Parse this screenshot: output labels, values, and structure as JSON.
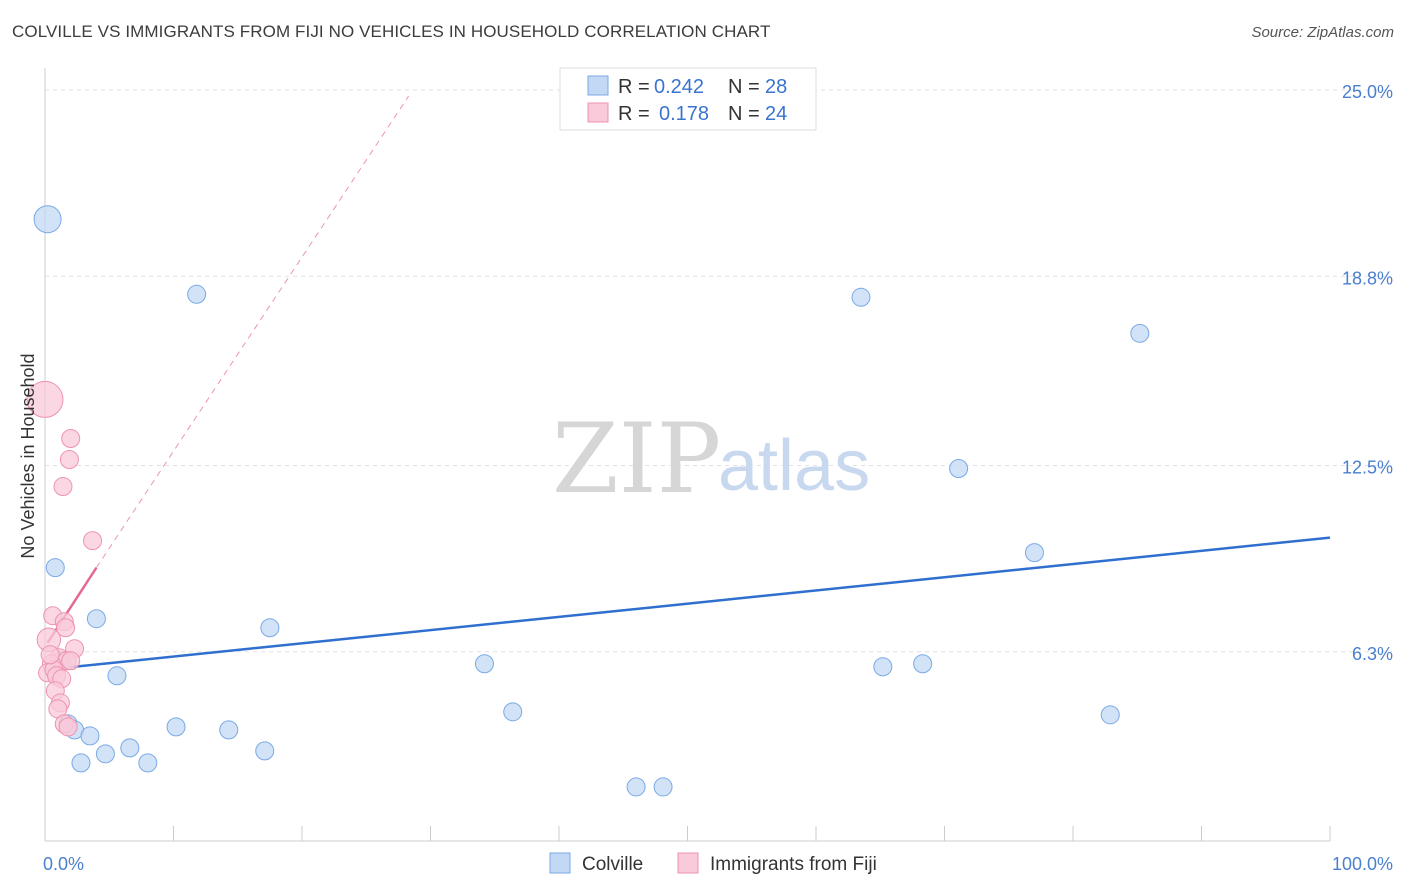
{
  "title": "COLVILLE VS IMMIGRANTS FROM FIJI NO VEHICLES IN HOUSEHOLD CORRELATION CHART",
  "source": "Source: ZipAtlas.com",
  "watermark": {
    "zip": "ZIP",
    "atlas": "atlas"
  },
  "chart_data": {
    "type": "scatter",
    "ylabel": "No Vehicles in Household",
    "xlim": [
      0,
      100
    ],
    "ylim": [
      0,
      25.6
    ],
    "x_tick_labels": {
      "min": "0.0%",
      "max": "100.0%"
    },
    "y_ticks": [
      {
        "value": 6.3,
        "label": "6.3%"
      },
      {
        "value": 12.5,
        "label": "12.5%"
      },
      {
        "value": 18.8,
        "label": "18.8%"
      },
      {
        "value": 25.0,
        "label": "25.0%"
      }
    ],
    "series": [
      {
        "name": "Colville",
        "color": "#7aaae6",
        "fill": "#c3d8f4",
        "R": "0.242",
        "N": "28",
        "trend": {
          "x0": 0,
          "y0": 5.7,
          "x1": 100,
          "y1": 10.1,
          "color": "#2f6fcf"
        },
        "points": [
          {
            "x": 0.2,
            "y": 20.7,
            "s": 1.5
          },
          {
            "x": 11.8,
            "y": 18.2,
            "s": 1
          },
          {
            "x": 63.5,
            "y": 18.1,
            "s": 1
          },
          {
            "x": 85.2,
            "y": 16.9,
            "s": 1
          },
          {
            "x": 71.1,
            "y": 12.4,
            "s": 1
          },
          {
            "x": 77.0,
            "y": 9.6,
            "s": 1
          },
          {
            "x": 0.8,
            "y": 9.1,
            "s": 1
          },
          {
            "x": 4.0,
            "y": 7.4,
            "s": 1
          },
          {
            "x": 17.5,
            "y": 7.1,
            "s": 1
          },
          {
            "x": 1.3,
            "y": 6.0,
            "s": 1
          },
          {
            "x": 34.2,
            "y": 5.9,
            "s": 1
          },
          {
            "x": 65.2,
            "y": 5.8,
            "s": 1
          },
          {
            "x": 68.3,
            "y": 5.9,
            "s": 1
          },
          {
            "x": 5.6,
            "y": 5.5,
            "s": 1
          },
          {
            "x": 36.4,
            "y": 4.3,
            "s": 1
          },
          {
            "x": 82.9,
            "y": 4.2,
            "s": 1
          },
          {
            "x": 1.8,
            "y": 3.9,
            "s": 1
          },
          {
            "x": 2.3,
            "y": 3.7,
            "s": 1
          },
          {
            "x": 3.5,
            "y": 3.5,
            "s": 1
          },
          {
            "x": 10.2,
            "y": 3.8,
            "s": 1
          },
          {
            "x": 14.3,
            "y": 3.7,
            "s": 1
          },
          {
            "x": 6.6,
            "y": 3.1,
            "s": 1
          },
          {
            "x": 4.7,
            "y": 2.9,
            "s": 1
          },
          {
            "x": 17.1,
            "y": 3.0,
            "s": 1
          },
          {
            "x": 2.8,
            "y": 2.6,
            "s": 1
          },
          {
            "x": 8.0,
            "y": 2.6,
            "s": 1
          },
          {
            "x": 46.0,
            "y": 1.8,
            "s": 1
          },
          {
            "x": 48.1,
            "y": 1.8,
            "s": 1
          }
        ]
      },
      {
        "name": "Immigrants from Fiji",
        "color": "#ee93b0",
        "fill": "#f9cad9",
        "R": "0.178",
        "N": "24",
        "trend": {
          "x0": 0.2,
          "y0": 6.6,
          "x1": 4.0,
          "y1": 9.1,
          "color": "#e56a92"
        },
        "trend_ext": {
          "x0": 4.0,
          "y0": 9.1,
          "x1": 28.3,
          "y1": 24.8,
          "color": "#ee93b0"
        },
        "points": [
          {
            "x": 0.0,
            "y": 14.7,
            "s": 2.0
          },
          {
            "x": 2.0,
            "y": 13.4,
            "s": 1
          },
          {
            "x": 1.9,
            "y": 12.7,
            "s": 1
          },
          {
            "x": 1.4,
            "y": 11.8,
            "s": 1
          },
          {
            "x": 3.7,
            "y": 10.0,
            "s": 1
          },
          {
            "x": 0.6,
            "y": 7.5,
            "s": 1
          },
          {
            "x": 1.5,
            "y": 7.3,
            "s": 1
          },
          {
            "x": 1.6,
            "y": 7.1,
            "s": 1
          },
          {
            "x": 0.3,
            "y": 6.7,
            "s": 1.3
          },
          {
            "x": 2.3,
            "y": 6.4,
            "s": 1
          },
          {
            "x": 1.1,
            "y": 6.1,
            "s": 1
          },
          {
            "x": 1.7,
            "y": 6.0,
            "s": 1
          },
          {
            "x": 2.0,
            "y": 6.0,
            "s": 1
          },
          {
            "x": 0.5,
            "y": 5.9,
            "s": 1
          },
          {
            "x": 0.2,
            "y": 5.6,
            "s": 1
          },
          {
            "x": 0.7,
            "y": 5.7,
            "s": 1
          },
          {
            "x": 0.9,
            "y": 5.5,
            "s": 1
          },
          {
            "x": 1.3,
            "y": 5.4,
            "s": 1
          },
          {
            "x": 0.8,
            "y": 5.0,
            "s": 1
          },
          {
            "x": 1.2,
            "y": 4.6,
            "s": 1
          },
          {
            "x": 1.0,
            "y": 4.4,
            "s": 1
          },
          {
            "x": 1.5,
            "y": 3.9,
            "s": 1
          },
          {
            "x": 1.8,
            "y": 3.8,
            "s": 1
          },
          {
            "x": 0.4,
            "y": 6.2,
            "s": 1
          }
        ]
      }
    ],
    "legend_labels": {
      "r_prefix": "R = ",
      "n_prefix": "N = "
    }
  }
}
